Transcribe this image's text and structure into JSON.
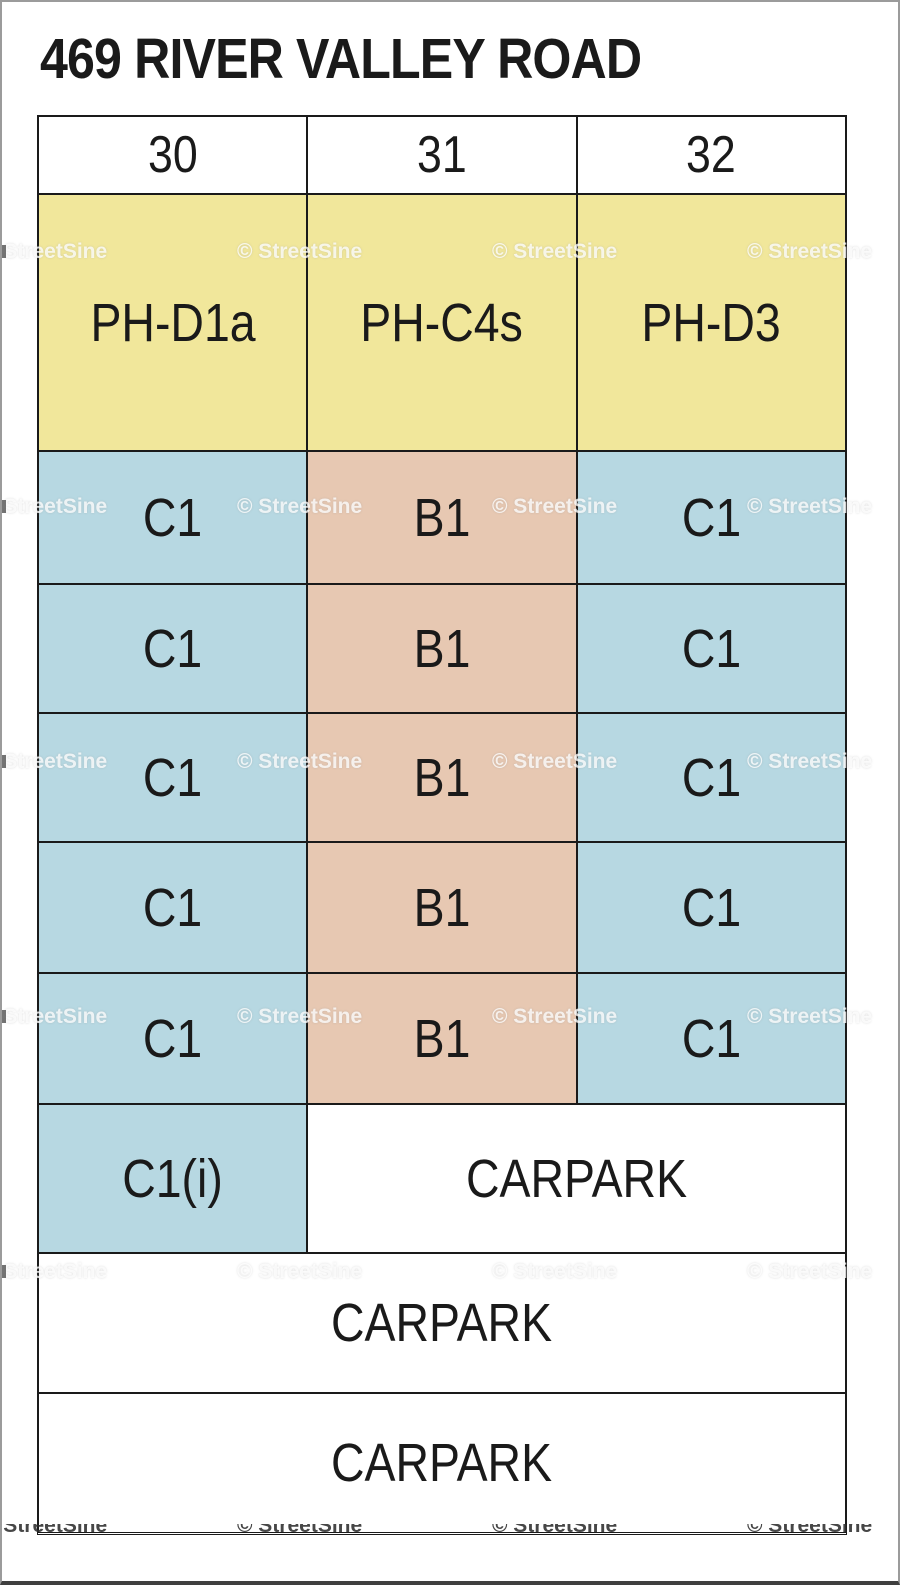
{
  "title": "469 RIVER VALLEY ROAD",
  "watermark": {
    "label": "© StreetSine"
  },
  "colors": {
    "penthouse": "#f1e79b",
    "type_c": "#b7d8e2",
    "type_b": "#e7c8b2",
    "carpark": "#ffffff",
    "border": "#1a1a1a",
    "frame": "#9b9b9b"
  },
  "stack_table": {
    "stacks": [
      "30",
      "31",
      "32"
    ],
    "rows": [
      {
        "name": "penthouse-floor",
        "cells": [
          {
            "label": "PH-D1a",
            "type": "penthouse"
          },
          {
            "label": "PH-C4s",
            "type": "penthouse"
          },
          {
            "label": "PH-D3",
            "type": "penthouse"
          }
        ]
      },
      {
        "name": "floor-6",
        "cells": [
          {
            "label": "C1",
            "type": "type_c"
          },
          {
            "label": "B1",
            "type": "type_b"
          },
          {
            "label": "C1",
            "type": "type_c"
          }
        ]
      },
      {
        "name": "floor-5",
        "cells": [
          {
            "label": "C1",
            "type": "type_c"
          },
          {
            "label": "B1",
            "type": "type_b"
          },
          {
            "label": "C1",
            "type": "type_c"
          }
        ]
      },
      {
        "name": "floor-4",
        "cells": [
          {
            "label": "C1",
            "type": "type_c"
          },
          {
            "label": "B1",
            "type": "type_b"
          },
          {
            "label": "C1",
            "type": "type_c"
          }
        ]
      },
      {
        "name": "floor-3",
        "cells": [
          {
            "label": "C1",
            "type": "type_c"
          },
          {
            "label": "B1",
            "type": "type_b"
          },
          {
            "label": "C1",
            "type": "type_c"
          }
        ]
      },
      {
        "name": "floor-2",
        "cells": [
          {
            "label": "C1",
            "type": "type_c"
          },
          {
            "label": "B1",
            "type": "type_b"
          },
          {
            "label": "C1",
            "type": "type_c"
          }
        ]
      },
      {
        "name": "floor-1",
        "cells": [
          {
            "label": "C1(i)",
            "type": "type_c"
          },
          {
            "label": "CARPARK",
            "type": "carpark",
            "span": 2
          }
        ]
      },
      {
        "name": "carpark-level-2",
        "cells": [
          {
            "label": "CARPARK",
            "type": "carpark",
            "span": 3
          }
        ]
      },
      {
        "name": "carpark-level-1",
        "cells": [
          {
            "label": "CARPARK",
            "type": "carpark",
            "span": 3
          }
        ]
      }
    ]
  }
}
